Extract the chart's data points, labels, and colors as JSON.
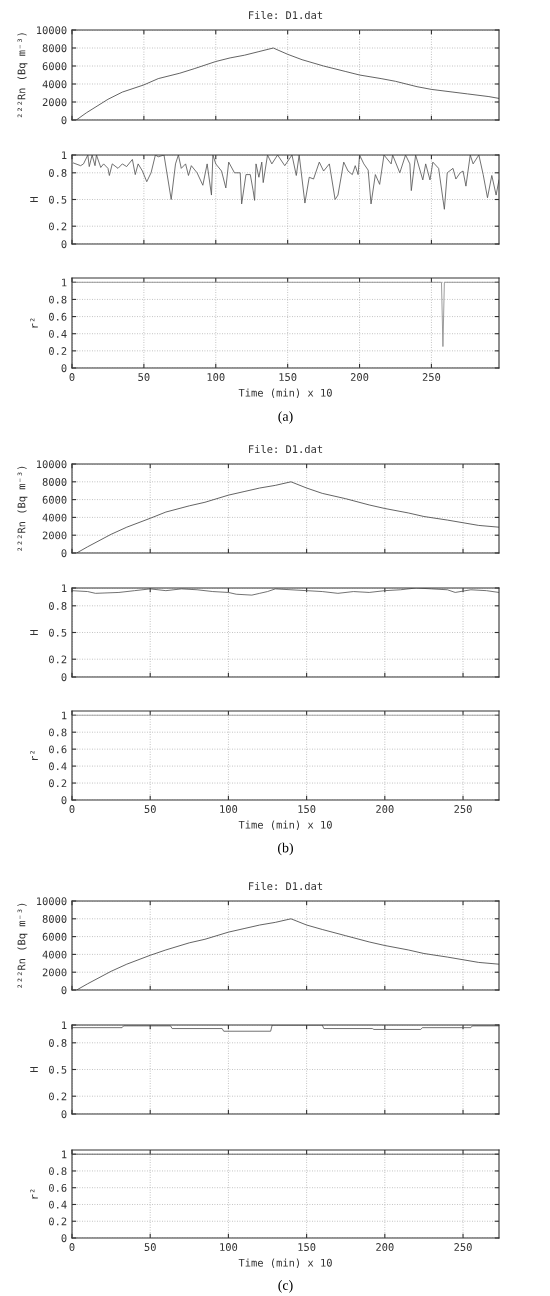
{
  "chart_data": [
    {
      "type": "line",
      "title": "File: D1.dat",
      "ylabel": "²²²Rn (Bq m⁻³)",
      "x": [
        3,
        10,
        25,
        35,
        50,
        60,
        75,
        85,
        100,
        110,
        120,
        130,
        140,
        150,
        160,
        175,
        190,
        200,
        215,
        225,
        240,
        250,
        265,
        275,
        290,
        297
      ],
      "series": [
        {
          "color": "#444444",
          "values": [
            0,
            800,
            2300,
            3100,
            3900,
            4600,
            5200,
            5700,
            6500,
            6900,
            7200,
            7600,
            8000,
            7300,
            6700,
            6000,
            5400,
            5000,
            4600,
            4300,
            3700,
            3400,
            3100,
            2900,
            2600,
            2400
          ]
        }
      ],
      "xlim": [
        0,
        297
      ],
      "ylim": [
        0,
        10000
      ],
      "xticks": [
        0,
        50,
        100,
        150,
        200,
        250
      ],
      "yticks": [
        0,
        2000,
        4000,
        6000,
        8000,
        10000
      ],
      "grid": true,
      "tick_labels": "y"
    },
    {
      "type": "line",
      "ylabel": "H",
      "x": [
        1,
        6,
        8,
        11,
        12,
        14,
        16,
        17,
        20,
        22,
        25,
        26,
        28,
        32,
        35,
        38,
        42,
        44,
        46,
        49,
        52,
        55,
        58,
        60,
        64,
        69,
        72,
        74,
        76,
        79,
        81,
        83,
        87,
        91,
        94,
        97,
        98,
        100,
        104,
        107,
        109,
        113,
        117,
        118,
        121,
        124,
        126,
        127,
        128,
        130,
        132,
        133,
        136,
        139,
        143,
        148,
        153,
        156,
        158,
        162,
        165,
        168,
        172,
        175,
        179,
        183,
        185,
        189,
        192,
        195,
        197,
        199,
        200,
        203,
        206,
        208,
        211,
        214,
        217,
        222,
        223,
        228,
        232,
        235,
        236,
        239,
        244,
        246,
        249,
        251,
        255,
        259,
        261,
        265,
        267,
        270,
        272,
        274,
        277,
        279,
        283,
        286,
        289,
        292,
        295,
        297
      ],
      "series": [
        {
          "color": "#555555",
          "values": [
            0.91,
            0.88,
            0.9,
            1,
            0.87,
            1,
            0.88,
            1,
            0.86,
            0.9,
            0.85,
            0.77,
            0.9,
            0.85,
            0.9,
            0.87,
            0.95,
            0.78,
            0.9,
            0.82,
            0.7,
            0.8,
            1,
            0.98,
            1,
            0.5,
            0.9,
            1,
            0.85,
            0.9,
            0.77,
            0.88,
            0.8,
            0.66,
            0.9,
            0.55,
            1,
            0.9,
            0.82,
            0.63,
            0.92,
            0.8,
            0.8,
            0.45,
            0.78,
            0.78,
            0.6,
            0.49,
            0.9,
            0.75,
            0.92,
            0.69,
            1,
            0.9,
            1,
            0.88,
            1,
            0.77,
            1,
            0.46,
            0.75,
            0.73,
            0.92,
            0.82,
            0.9,
            0.5,
            0.55,
            0.92,
            0.82,
            0.78,
            0.88,
            0.78,
            1,
            0.9,
            0.83,
            0.45,
            0.78,
            0.67,
            1,
            0.9,
            1,
            0.8,
            1,
            0.9,
            0.6,
            1,
            0.72,
            0.9,
            0.72,
            0.92,
            0.85,
            0.39,
            0.8,
            0.85,
            0.73,
            0.8,
            0.82,
            0.65,
            1,
            0.9,
            1,
            0.78,
            0.52,
            0.77,
            0.55,
            0.72
          ]
        }
      ],
      "xlim": [
        0,
        297
      ],
      "ylim": [
        0,
        1
      ],
      "xticks": [
        0,
        50,
        100,
        150,
        200,
        250
      ],
      "yticks": [
        0,
        0.2,
        0.5,
        0.8,
        1
      ],
      "grid": true,
      "tick_labels": "y"
    },
    {
      "type": "line",
      "ylabel": "r²",
      "xlabel": "Time (min) x 10",
      "x": [
        0,
        257,
        258,
        259,
        297
      ],
      "series": [
        {
          "color": "#888888",
          "values": [
            1,
            1,
            0.25,
            1,
            1
          ]
        }
      ],
      "xlim": [
        0,
        297
      ],
      "ylim": [
        0,
        1.05
      ],
      "xticks": [
        0,
        50,
        100,
        150,
        200,
        250
      ],
      "yticks": [
        0,
        0.2,
        0.4,
        0.6,
        0.8,
        1
      ],
      "grid": true,
      "annotations": [
        "(a)"
      ]
    },
    {
      "type": "line",
      "title": "File: D1.dat",
      "ylabel": "²²²Rn (Bq m⁻³)",
      "x": [
        3,
        10,
        25,
        35,
        50,
        60,
        75,
        85,
        100,
        110,
        120,
        130,
        140,
        150,
        160,
        175,
        190,
        200,
        215,
        225,
        240,
        250,
        260,
        273
      ],
      "series": [
        {
          "color": "#444444",
          "values": [
            0,
            700,
            2100,
            2900,
            3900,
            4600,
            5300,
            5700,
            6500,
            6900,
            7300,
            7600,
            8000,
            7300,
            6700,
            6100,
            5400,
            5000,
            4500,
            4100,
            3700,
            3400,
            3100,
            2900
          ]
        }
      ],
      "xlim": [
        0,
        273
      ],
      "ylim": [
        0,
        10000
      ],
      "xticks": [
        0,
        50,
        100,
        150,
        200,
        250
      ],
      "yticks": [
        0,
        2000,
        4000,
        6000,
        8000,
        10000
      ],
      "grid": true,
      "tick_labels": "y"
    },
    {
      "type": "line",
      "ylabel": "H",
      "x": [
        0,
        10,
        15,
        30,
        40,
        50,
        60,
        70,
        80,
        90,
        100,
        105,
        115,
        120,
        125,
        130,
        140,
        150,
        160,
        170,
        180,
        190,
        200,
        210,
        220,
        230,
        240,
        245,
        255,
        265,
        273
      ],
      "series": [
        {
          "color": "#555555",
          "values": [
            0.97,
            0.96,
            0.94,
            0.95,
            0.97,
            0.99,
            0.97,
            0.99,
            0.98,
            0.96,
            0.95,
            0.93,
            0.92,
            0.94,
            0.96,
            0.99,
            0.98,
            0.97,
            0.96,
            0.94,
            0.96,
            0.95,
            0.97,
            0.98,
            1,
            0.99,
            0.98,
            0.95,
            0.98,
            0.97,
            0.95
          ]
        }
      ],
      "xlim": [
        0,
        273
      ],
      "ylim": [
        0,
        1
      ],
      "xticks": [
        0,
        50,
        100,
        150,
        200,
        250
      ],
      "yticks": [
        0,
        0.2,
        0.5,
        0.8,
        1
      ],
      "grid": true,
      "tick_labels": "y"
    },
    {
      "type": "line",
      "ylabel": "r²",
      "xlabel": "Time (min) x 10",
      "x": [
        0,
        273
      ],
      "series": [
        {
          "color": "#999999",
          "values": [
            1,
            1
          ]
        }
      ],
      "xlim": [
        0,
        273
      ],
      "ylim": [
        0,
        1.05
      ],
      "xticks": [
        0,
        50,
        100,
        150,
        200,
        250
      ],
      "yticks": [
        0,
        0.2,
        0.4,
        0.6,
        0.8,
        1
      ],
      "grid": true,
      "annotations": [
        "(b)"
      ]
    },
    {
      "type": "line",
      "title": "File: D1.dat",
      "ylabel": "²²²Rn (Bq m⁻³)",
      "x": [
        3,
        10,
        25,
        35,
        50,
        60,
        75,
        85,
        100,
        110,
        120,
        130,
        140,
        150,
        160,
        175,
        190,
        200,
        215,
        225,
        240,
        250,
        260,
        273
      ],
      "series": [
        {
          "color": "#444444",
          "values": [
            0,
            700,
            2100,
            2900,
            3900,
            4500,
            5300,
            5700,
            6500,
            6900,
            7300,
            7600,
            8000,
            7300,
            6800,
            6100,
            5400,
            5000,
            4500,
            4100,
            3700,
            3400,
            3100,
            2900
          ]
        }
      ],
      "xlim": [
        0,
        273
      ],
      "ylim": [
        0,
        10000
      ],
      "xticks": [
        0,
        50,
        100,
        150,
        200,
        250
      ],
      "yticks": [
        0,
        2000,
        4000,
        6000,
        8000,
        10000
      ],
      "grid": true,
      "tick_labels": "y"
    },
    {
      "type": "line",
      "ylabel": "H",
      "x": [
        0,
        32,
        33,
        63,
        64,
        96,
        97,
        127,
        128,
        160,
        161,
        192,
        193,
        223,
        224,
        255,
        256,
        273
      ],
      "series": [
        {
          "color": "#555555",
          "values": [
            0.97,
            0.97,
            0.99,
            0.99,
            0.96,
            0.96,
            0.93,
            0.93,
            1,
            1,
            0.96,
            0.96,
            0.95,
            0.95,
            0.97,
            0.97,
            0.99,
            0.99
          ]
        }
      ],
      "xlim": [
        0,
        273
      ],
      "ylim": [
        0,
        1
      ],
      "xticks": [
        0,
        50,
        100,
        150,
        200,
        250
      ],
      "yticks": [
        0,
        0.2,
        0.5,
        0.8,
        1
      ],
      "grid": true,
      "tick_labels": "y"
    },
    {
      "type": "line",
      "ylabel": "r²",
      "xlabel": "Time (min) x 10",
      "x": [
        0,
        273
      ],
      "series": [
        {
          "color": "#444444",
          "values": [
            1,
            1
          ]
        }
      ],
      "xlim": [
        0,
        273
      ],
      "ylim": [
        0,
        1.05
      ],
      "xticks": [
        0,
        50,
        100,
        150,
        200,
        250
      ],
      "yticks": [
        0,
        0.2,
        0.4,
        0.6,
        0.8,
        1
      ],
      "grid": true,
      "annotations": [
        "(c)"
      ]
    }
  ]
}
